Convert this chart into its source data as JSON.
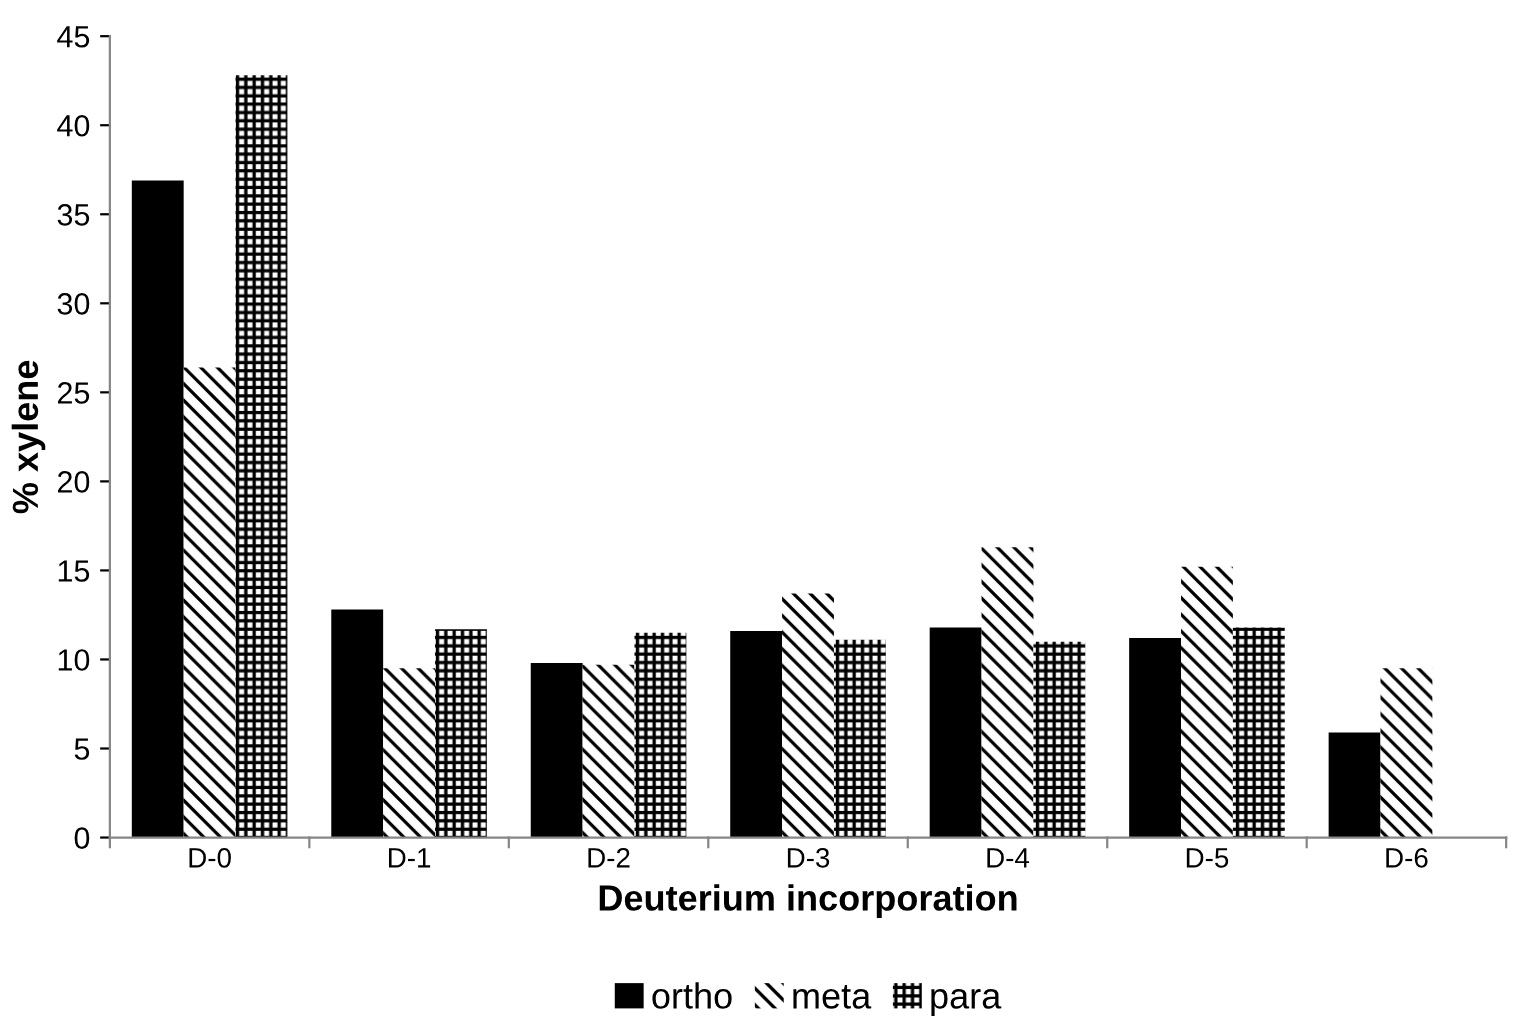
{
  "chart_data": {
    "type": "bar",
    "xlabel": "Deuterium incorporation",
    "ylabel": "% xylene",
    "categories": [
      "D-0",
      "D-1",
      "D-2",
      "D-3",
      "D-4",
      "D-5",
      "D-6"
    ],
    "series": [
      {
        "name": "ortho",
        "color": "#000000",
        "values": [
          36.9,
          12.8,
          9.8,
          11.6,
          11.8,
          11.2,
          5.9
        ]
      },
      {
        "name": "meta",
        "color": "#000000",
        "values": [
          26.4,
          9.5,
          9.7,
          13.7,
          16.3,
          15.2,
          9.5
        ]
      },
      {
        "name": "para",
        "color": "#000000",
        "values": [
          42.8,
          11.7,
          11.5,
          11.1,
          11.0,
          11.8,
          null
        ]
      }
    ],
    "ylim": [
      0,
      45
    ],
    "yticks": [
      0,
      5,
      10,
      15,
      20,
      25,
      30,
      35,
      40,
      45
    ],
    "grid": false,
    "legend": "bottom"
  }
}
